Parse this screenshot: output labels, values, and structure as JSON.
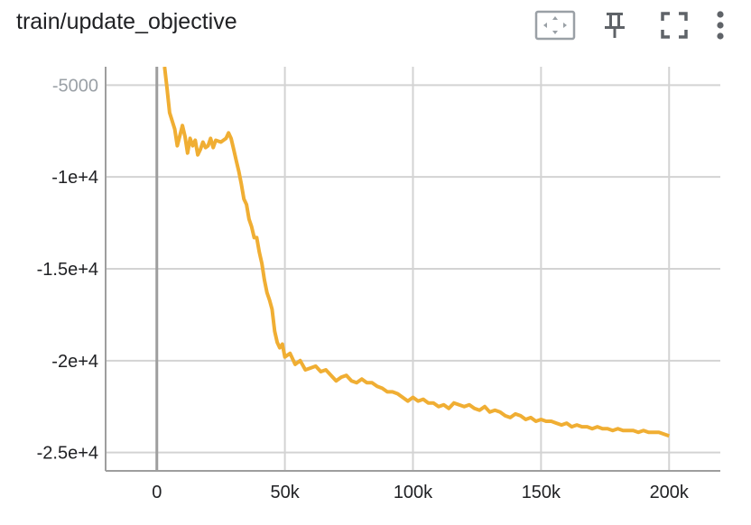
{
  "header": {
    "title": "train/update_objective"
  },
  "toolbar": {
    "icons": [
      "fit-domain-icon",
      "pin-icon",
      "fullscreen-icon",
      "more-vert-icon"
    ]
  },
  "colors": {
    "series": "#f0ae33",
    "grid": "#d3d3d3",
    "axis": "#9e9e9e",
    "text": "#202124",
    "icon": "#5f6368"
  },
  "chart_data": {
    "type": "line",
    "title": "train/update_objective",
    "xlabel": "",
    "ylabel": "",
    "xlim": [
      -20000,
      220000
    ],
    "ylim": [
      -26000,
      -4000
    ],
    "x_ticks": [
      0,
      50000,
      100000,
      150000,
      200000
    ],
    "x_tick_labels": [
      "0",
      "50k",
      "100k",
      "150k",
      "200k"
    ],
    "y_ticks": [
      -5000,
      -10000,
      -15000,
      -20000,
      -25000
    ],
    "y_tick_labels": [
      "-5000",
      "-1e+4",
      "-1.5e+4",
      "-2e+4",
      "-2.5e+4"
    ],
    "grid": true,
    "series": [
      {
        "color": "#f0ae33",
        "x": [
          3000,
          4000,
          5000,
          7000,
          8000,
          10000,
          11000,
          12000,
          13000,
          14000,
          15000,
          16000,
          17000,
          18000,
          19000,
          20000,
          21000,
          22000,
          23000,
          25000,
          27000,
          28000,
          29000,
          30000,
          31000,
          32000,
          33000,
          34000,
          35000,
          36000,
          37000,
          38000,
          39000,
          40000,
          41000,
          42000,
          43000,
          44000,
          45000,
          46000,
          47000,
          48000,
          49000,
          50000,
          52000,
          54000,
          56000,
          58000,
          60000,
          62000,
          64000,
          66000,
          68000,
          70000,
          72000,
          74000,
          76000,
          78000,
          80000,
          82000,
          84000,
          86000,
          88000,
          90000,
          92000,
          94000,
          96000,
          98000,
          100000,
          102000,
          104000,
          106000,
          108000,
          110000,
          112000,
          114000,
          116000,
          118000,
          120000,
          122000,
          124000,
          126000,
          128000,
          130000,
          132000,
          134000,
          136000,
          138000,
          140000,
          142000,
          144000,
          146000,
          148000,
          150000,
          152000,
          154000,
          156000,
          158000,
          160000,
          162000,
          164000,
          166000,
          168000,
          170000,
          172000,
          174000,
          176000,
          178000,
          180000,
          182000,
          184000,
          186000,
          188000,
          190000,
          192000,
          194000,
          196000,
          198000,
          200000
        ],
        "y": [
          -4000,
          -5200,
          -6500,
          -7400,
          -8300,
          -7200,
          -7800,
          -8700,
          -7900,
          -8300,
          -8000,
          -8800,
          -8500,
          -8100,
          -8400,
          -8300,
          -7900,
          -8400,
          -8000,
          -8100,
          -7900,
          -7600,
          -7900,
          -8500,
          -9100,
          -9700,
          -10400,
          -11200,
          -11500,
          -12300,
          -12700,
          -13300,
          -13300,
          -14100,
          -14700,
          -15600,
          -16300,
          -16700,
          -17200,
          -18400,
          -19000,
          -19300,
          -19100,
          -19800,
          -19600,
          -20200,
          -20000,
          -20500,
          -20400,
          -20300,
          -20600,
          -20500,
          -20800,
          -21100,
          -20900,
          -20800,
          -21100,
          -21200,
          -21000,
          -21200,
          -21200,
          -21400,
          -21500,
          -21700,
          -21700,
          -21800,
          -22000,
          -22200,
          -22000,
          -22200,
          -22100,
          -22300,
          -22300,
          -22500,
          -22400,
          -22600,
          -22300,
          -22400,
          -22500,
          -22400,
          -22600,
          -22700,
          -22500,
          -22800,
          -22700,
          -22800,
          -23000,
          -23100,
          -22900,
          -23000,
          -23200,
          -23100,
          -23300,
          -23200,
          -23300,
          -23300,
          -23400,
          -23500,
          -23400,
          -23600,
          -23500,
          -23600,
          -23600,
          -23700,
          -23600,
          -23700,
          -23700,
          -23800,
          -23700,
          -23800,
          -23800,
          -23800,
          -23900,
          -23800,
          -23900,
          -23900,
          -23900,
          -24000,
          -24100
        ]
      }
    ]
  }
}
